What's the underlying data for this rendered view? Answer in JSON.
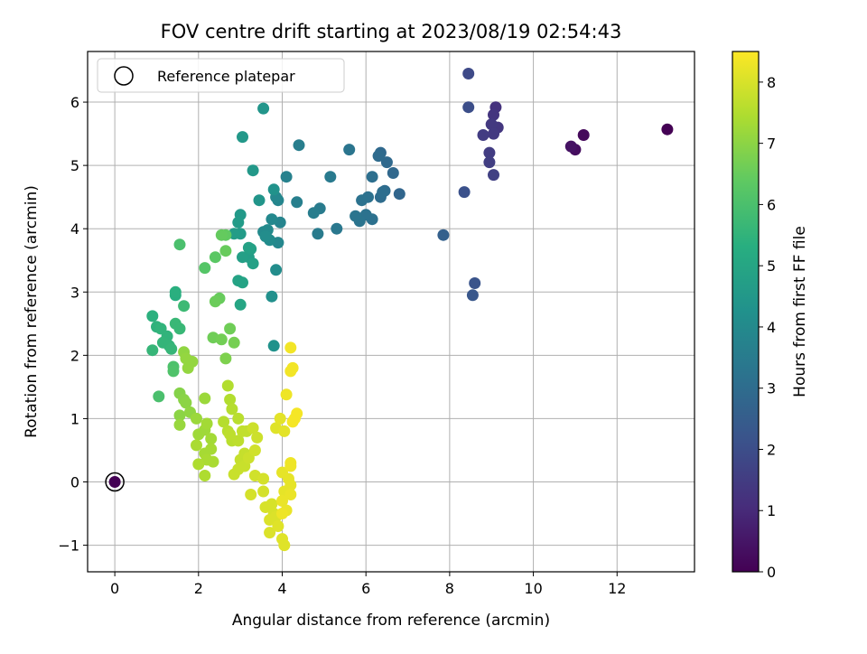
{
  "chart_data": {
    "type": "scatter",
    "title": "FOV centre drift starting at 2023/08/19 02:54:43",
    "xlabel": "Angular distance from reference (arcmin)",
    "ylabel": "Rotation from reference (arcmin)",
    "xlim": [
      -0.65,
      13.85
    ],
    "ylim": [
      -1.42,
      6.8
    ],
    "xticks": [
      "0",
      "2",
      "4",
      "6",
      "8",
      "10",
      "12"
    ],
    "yticks": [
      "−1",
      "0",
      "1",
      "2",
      "3",
      "4",
      "5",
      "6"
    ],
    "grid": true,
    "legend": {
      "position": "top-left",
      "entries": [
        "Reference platepar"
      ]
    },
    "colorbar": {
      "label": "Hours from first FF file",
      "range": [
        0,
        8.5
      ],
      "ticks": [
        "0",
        "1",
        "2",
        "3",
        "4",
        "5",
        "6",
        "7",
        "8"
      ],
      "colormap": "viridis"
    },
    "reference_point": {
      "x": 0,
      "y": 0
    },
    "points": [
      [
        13.2,
        5.57,
        0.0
      ],
      [
        11.2,
        5.48,
        0.2
      ],
      [
        11.0,
        5.25,
        0.3
      ],
      [
        10.9,
        5.3,
        0.4
      ],
      [
        9.1,
        5.92,
        1.2
      ],
      [
        9.05,
        5.8,
        1.3
      ],
      [
        9.15,
        5.6,
        1.35
      ],
      [
        9.0,
        5.65,
        1.4
      ],
      [
        9.05,
        5.5,
        1.45
      ],
      [
        8.8,
        5.48,
        1.5
      ],
      [
        8.95,
        5.2,
        1.5
      ],
      [
        8.95,
        5.05,
        1.55
      ],
      [
        9.05,
        4.85,
        1.6
      ],
      [
        8.45,
        6.45,
        1.9
      ],
      [
        8.45,
        5.92,
        2.0
      ],
      [
        8.35,
        4.58,
        2.1
      ],
      [
        8.6,
        3.14,
        2.2
      ],
      [
        8.55,
        2.95,
        2.3
      ],
      [
        7.85,
        3.9,
        2.6
      ],
      [
        6.8,
        4.55,
        2.8
      ],
      [
        6.65,
        4.88,
        2.85
      ],
      [
        6.5,
        5.05,
        2.9
      ],
      [
        6.35,
        5.2,
        2.9
      ],
      [
        6.3,
        5.15,
        2.95
      ],
      [
        6.45,
        4.6,
        3.0
      ],
      [
        6.35,
        4.5,
        3.0
      ],
      [
        6.4,
        4.58,
        3.05
      ],
      [
        6.15,
        4.82,
        3.1
      ],
      [
        6.15,
        4.15,
        3.15
      ],
      [
        6.05,
        4.5,
        3.15
      ],
      [
        5.9,
        4.45,
        3.2
      ],
      [
        6.0,
        4.22,
        3.2
      ],
      [
        5.85,
        4.12,
        3.25
      ],
      [
        5.75,
        4.2,
        3.3
      ],
      [
        5.6,
        5.25,
        3.3
      ],
      [
        5.3,
        4.0,
        3.4
      ],
      [
        5.15,
        4.82,
        3.45
      ],
      [
        4.9,
        4.32,
        3.5
      ],
      [
        4.85,
        3.92,
        3.5
      ],
      [
        4.75,
        4.25,
        3.55
      ],
      [
        4.4,
        5.32,
        3.6
      ],
      [
        4.35,
        4.42,
        3.65
      ],
      [
        4.1,
        4.82,
        3.7
      ],
      [
        3.95,
        4.1,
        3.8
      ],
      [
        3.9,
        4.45,
        3.85
      ],
      [
        3.85,
        4.5,
        3.9
      ],
      [
        3.9,
        3.78,
        3.9
      ],
      [
        3.75,
        4.15,
        3.95
      ],
      [
        3.65,
        3.98,
        4.0
      ],
      [
        3.55,
        3.95,
        4.0
      ],
      [
        3.7,
        3.82,
        4.05
      ],
      [
        3.6,
        3.88,
        4.1
      ],
      [
        3.85,
        3.35,
        4.1
      ],
      [
        3.75,
        2.93,
        4.2
      ],
      [
        3.8,
        2.15,
        4.3
      ],
      [
        3.8,
        4.62,
        4.3
      ],
      [
        3.45,
        4.45,
        4.4
      ],
      [
        3.55,
        5.9,
        4.4
      ],
      [
        3.3,
        4.92,
        4.5
      ],
      [
        3.05,
        5.45,
        4.5
      ],
      [
        3.0,
        4.22,
        4.55
      ],
      [
        2.95,
        4.1,
        4.6
      ],
      [
        3.0,
        3.92,
        4.6
      ],
      [
        2.85,
        3.92,
        4.65
      ],
      [
        3.2,
        3.55,
        4.7
      ],
      [
        3.05,
        3.55,
        4.75
      ],
      [
        3.3,
        3.45,
        4.8
      ],
      [
        3.25,
        3.68,
        4.8
      ],
      [
        3.2,
        3.7,
        4.85
      ],
      [
        2.95,
        3.18,
        4.9
      ],
      [
        3.05,
        3.15,
        4.9
      ],
      [
        3.0,
        2.8,
        5.0
      ],
      [
        1.45,
        2.95,
        5.3
      ],
      [
        1.45,
        3.0,
        5.35
      ],
      [
        0.9,
        2.62,
        5.4
      ],
      [
        1.0,
        2.45,
        5.45
      ],
      [
        1.1,
        2.42,
        5.5
      ],
      [
        1.25,
        2.3,
        5.5
      ],
      [
        1.15,
        2.2,
        5.55
      ],
      [
        1.3,
        2.15,
        5.55
      ],
      [
        1.35,
        2.1,
        5.6
      ],
      [
        0.9,
        2.08,
        5.6
      ],
      [
        1.45,
        2.5,
        5.65
      ],
      [
        1.55,
        2.42,
        5.65
      ],
      [
        1.65,
        2.78,
        5.75
      ],
      [
        1.55,
        3.75,
        6.0
      ],
      [
        1.05,
        1.35,
        6.0
      ],
      [
        1.4,
        1.82,
        6.05
      ],
      [
        1.4,
        1.75,
        6.1
      ],
      [
        2.15,
        3.38,
        6.2
      ],
      [
        2.4,
        3.55,
        6.3
      ],
      [
        2.65,
        3.9,
        6.4
      ],
      [
        2.55,
        3.9,
        6.45
      ],
      [
        2.65,
        3.65,
        6.5
      ],
      [
        2.5,
        2.9,
        6.5
      ],
      [
        2.4,
        2.85,
        6.55
      ],
      [
        2.75,
        2.42,
        6.6
      ],
      [
        2.35,
        2.28,
        6.6
      ],
      [
        2.55,
        2.25,
        6.65
      ],
      [
        2.85,
        2.2,
        6.7
      ],
      [
        2.65,
        1.95,
        6.8
      ],
      [
        1.55,
        1.4,
        6.9
      ],
      [
        1.65,
        1.3,
        6.95
      ],
      [
        1.55,
        1.05,
        7.0
      ],
      [
        1.7,
        1.25,
        7.0
      ],
      [
        1.8,
        1.1,
        7.05
      ],
      [
        1.65,
        2.05,
        7.05
      ],
      [
        1.7,
        1.95,
        7.1
      ],
      [
        1.85,
        1.9,
        7.1
      ],
      [
        1.75,
        1.8,
        7.1
      ],
      [
        1.55,
        0.9,
        7.15
      ],
      [
        1.95,
        1.0,
        7.2
      ],
      [
        2.15,
        1.32,
        7.2
      ],
      [
        2.0,
        0.75,
        7.25
      ],
      [
        2.15,
        0.82,
        7.25
      ],
      [
        2.2,
        0.92,
        7.3
      ],
      [
        2.3,
        0.68,
        7.3
      ],
      [
        2.15,
        0.45,
        7.35
      ],
      [
        2.3,
        0.52,
        7.35
      ],
      [
        2.35,
        0.32,
        7.4
      ],
      [
        2.2,
        0.35,
        7.4
      ],
      [
        1.95,
        0.58,
        7.4
      ],
      [
        2.0,
        0.28,
        7.45
      ],
      [
        2.15,
        0.1,
        7.45
      ],
      [
        2.7,
        1.52,
        7.5
      ],
      [
        2.75,
        1.3,
        7.5
      ],
      [
        2.8,
        1.15,
        7.55
      ],
      [
        2.6,
        0.95,
        7.55
      ],
      [
        2.7,
        0.8,
        7.6
      ],
      [
        2.8,
        0.65,
        7.6
      ],
      [
        2.95,
        0.65,
        7.65
      ],
      [
        2.95,
        1.0,
        7.6
      ],
      [
        2.75,
        0.75,
        7.65
      ],
      [
        3.05,
        0.8,
        7.7
      ],
      [
        3.15,
        0.8,
        7.7
      ],
      [
        3.0,
        0.35,
        7.75
      ],
      [
        3.1,
        0.45,
        7.75
      ],
      [
        2.95,
        0.2,
        7.8
      ],
      [
        2.85,
        0.12,
        7.8
      ],
      [
        3.1,
        0.25,
        7.8
      ],
      [
        3.2,
        0.38,
        7.85
      ],
      [
        3.3,
        0.85,
        7.85
      ],
      [
        3.4,
        0.7,
        7.85
      ],
      [
        3.35,
        0.5,
        7.9
      ],
      [
        3.35,
        0.1,
        7.9
      ],
      [
        3.55,
        0.05,
        7.95
      ],
      [
        3.55,
        -0.15,
        7.95
      ],
      [
        3.25,
        -0.2,
        7.95
      ],
      [
        3.6,
        -0.4,
        8.0
      ],
      [
        3.75,
        -0.35,
        8.0
      ],
      [
        3.8,
        -0.5,
        8.0
      ],
      [
        3.7,
        -0.6,
        8.05
      ],
      [
        3.85,
        -0.55,
        8.05
      ],
      [
        3.7,
        -0.8,
        8.05
      ],
      [
        3.9,
        -0.7,
        8.1
      ],
      [
        4.0,
        -0.9,
        8.1
      ],
      [
        4.05,
        -1.0,
        8.1
      ],
      [
        3.85,
        0.85,
        8.1
      ],
      [
        3.95,
        1.0,
        8.15
      ],
      [
        4.05,
        0.8,
        8.15
      ],
      [
        4.0,
        0.15,
        8.2
      ],
      [
        4.15,
        0.05,
        8.2
      ],
      [
        4.2,
        -0.05,
        8.2
      ],
      [
        4.05,
        -0.15,
        8.2
      ],
      [
        4.0,
        -0.3,
        8.25
      ],
      [
        4.2,
        -0.2,
        8.25
      ],
      [
        4.1,
        -0.45,
        8.25
      ],
      [
        4.0,
        -0.5,
        8.3
      ],
      [
        4.2,
        0.3,
        8.3
      ],
      [
        4.2,
        0.25,
        8.3
      ],
      [
        4.1,
        1.38,
        8.3
      ],
      [
        4.2,
        1.75,
        8.35
      ],
      [
        4.25,
        1.8,
        8.35
      ],
      [
        4.2,
        2.12,
        8.35
      ],
      [
        4.3,
        1.0,
        8.4
      ],
      [
        4.35,
        1.08,
        8.4
      ],
      [
        4.25,
        0.95,
        8.4
      ]
    ]
  }
}
